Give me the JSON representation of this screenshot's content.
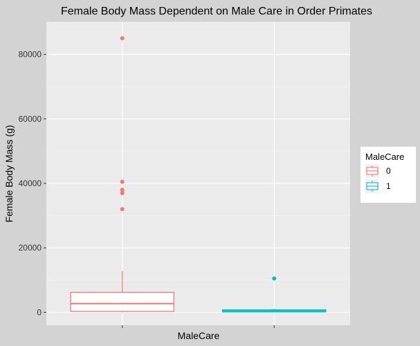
{
  "chart_data": {
    "type": "box",
    "title": "Female Body Mass Dependent on Male Care in Order Primates",
    "xlabel": "MaleCare",
    "ylabel": "Female Body Mass (g)",
    "x_tick_labels": [
      "",
      ""
    ],
    "ylim": [
      -4000,
      90000
    ],
    "yticks": [
      0,
      20000,
      40000,
      60000,
      80000
    ],
    "grid": true,
    "legend": {
      "title": "MaleCare",
      "placement": "right",
      "entries": [
        "0",
        "1"
      ]
    },
    "colors": {
      "0": "#f8766d",
      "1": "#00bfc4"
    },
    "series": [
      {
        "name": "0",
        "min": 0,
        "q1": 300,
        "median": 2700,
        "q3": 6200,
        "max": 12800,
        "outliers": [
          85000,
          40500,
          38000,
          37000,
          32000
        ]
      },
      {
        "name": "1",
        "min": 0,
        "q1": 250,
        "median": 450,
        "q3": 650,
        "max": 1100,
        "outliers": [
          10500
        ]
      }
    ]
  }
}
